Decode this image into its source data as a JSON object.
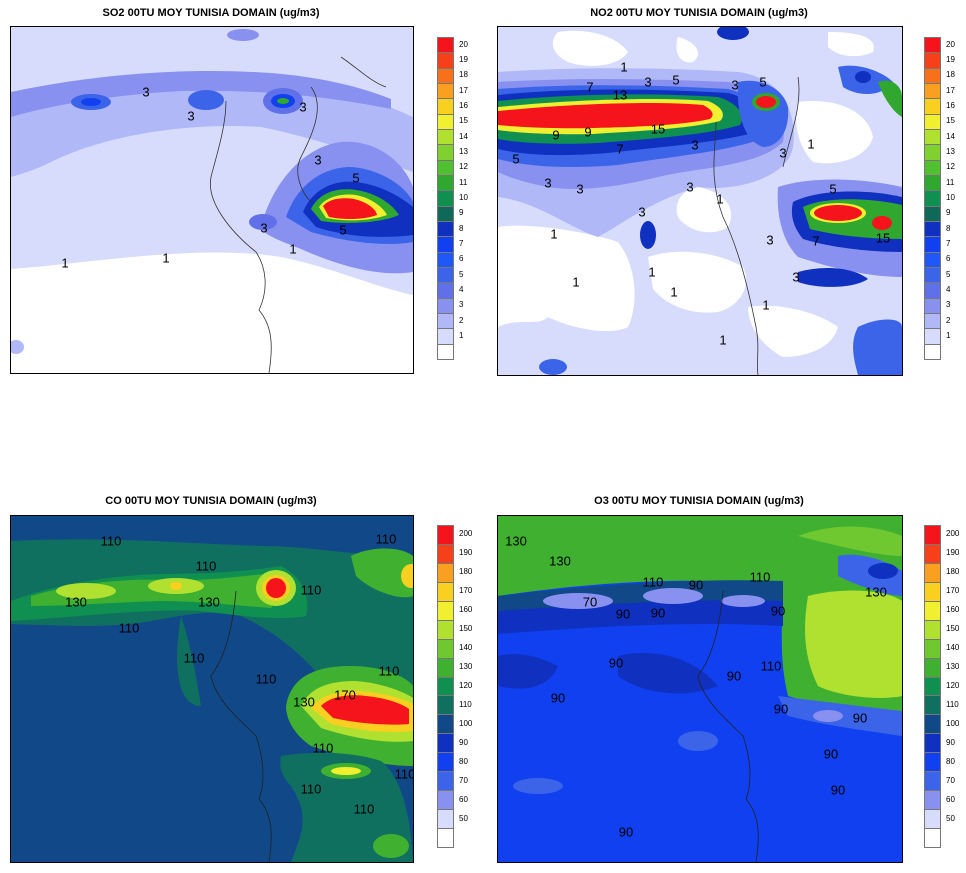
{
  "panels": [
    {
      "id": "so2",
      "title": "SO2 00TU MOY TUNISIA DOMAIN (ug/m3)",
      "legend_values": [
        "20",
        "19",
        "18",
        "17",
        "16",
        "15",
        "14",
        "13",
        "12",
        "11",
        "10",
        "9",
        "8",
        "7",
        "6",
        "5",
        "4",
        "3",
        "2",
        "1"
      ],
      "legend_colors": [
        "#f5141c",
        "#f5401a",
        "#f7701a",
        "#f9a020",
        "#f9d020",
        "#f0f030",
        "#b0e030",
        "#80d030",
        "#50c030",
        "#30a830",
        "#109050",
        "#106858",
        "#1030c0",
        "#1040f0",
        "#2058f8",
        "#3c64e8",
        "#6070e8",
        "#8890f0",
        "#b0b8f8",
        "#d8dcfc",
        "#ffffff"
      ],
      "contour_labels": [
        "3",
        "3",
        "3",
        "3",
        "5",
        "3",
        "5",
        "1",
        "1",
        "1"
      ]
    },
    {
      "id": "no2",
      "title": "NO2 00TU MOY TUNISIA DOMAIN (ug/m3)",
      "legend_values": [
        "20",
        "19",
        "18",
        "17",
        "16",
        "15",
        "14",
        "13",
        "12",
        "11",
        "10",
        "9",
        "8",
        "7",
        "6",
        "5",
        "4",
        "3",
        "2",
        "1"
      ],
      "legend_colors": [
        "#f5141c",
        "#f5401a",
        "#f7701a",
        "#f9a020",
        "#f9d020",
        "#f0f030",
        "#b0e030",
        "#80d030",
        "#50c030",
        "#30a830",
        "#109050",
        "#106858",
        "#1030c0",
        "#1040f0",
        "#2058f8",
        "#3c64e8",
        "#6070e8",
        "#8890f0",
        "#b0b8f8",
        "#d8dcfc",
        "#ffffff"
      ],
      "contour_labels": [
        "1",
        "3",
        "5",
        "3",
        "5",
        "7",
        "13",
        "9",
        "9",
        "15",
        "7",
        "3",
        "5",
        "3",
        "3",
        "3",
        "1",
        "1",
        "5",
        "7",
        "15",
        "3",
        "3",
        "3",
        "1",
        "1",
        "1",
        "1",
        "1",
        "3",
        "1"
      ]
    },
    {
      "id": "co",
      "title": "CO 00TU MOY TUNISIA DOMAIN (ug/m3)",
      "legend_values": [
        "200",
        "190",
        "180",
        "170",
        "160",
        "150",
        "140",
        "130",
        "120",
        "110",
        "100",
        "90",
        "80",
        "70",
        "60",
        "50"
      ],
      "legend_colors": [
        "#f5141c",
        "#f5401a",
        "#f9a020",
        "#f9d020",
        "#f0f030",
        "#b0e030",
        "#70c830",
        "#40b030",
        "#109050",
        "#107060",
        "#104888",
        "#1030c0",
        "#1040f0",
        "#3c64e8",
        "#8890f0",
        "#d8dcfc",
        "#ffffff"
      ],
      "contour_labels": [
        "110",
        "110",
        "130",
        "130",
        "110",
        "110",
        "110",
        "110",
        "110",
        "170",
        "130",
        "110",
        "110",
        "110",
        "110",
        "110"
      ]
    },
    {
      "id": "o3",
      "title": "O3 00TU MOY TUNISIA DOMAIN (ug/m3)",
      "legend_values": [
        "200",
        "190",
        "180",
        "170",
        "160",
        "150",
        "140",
        "130",
        "120",
        "110",
        "100",
        "90",
        "80",
        "70",
        "60",
        "50"
      ],
      "legend_colors": [
        "#f5141c",
        "#f5401a",
        "#f9a020",
        "#f9d020",
        "#f0f030",
        "#b0e030",
        "#70c830",
        "#40b030",
        "#109050",
        "#107060",
        "#104888",
        "#1030c0",
        "#1040f0",
        "#3c64e8",
        "#8890f0",
        "#d8dcfc",
        "#ffffff"
      ],
      "contour_labels": [
        "130",
        "130",
        "110",
        "90",
        "110",
        "70",
        "90",
        "90",
        "90",
        "90",
        "110",
        "90",
        "90",
        "130",
        "90",
        "90",
        "90",
        "90",
        "90"
      ]
    }
  ]
}
